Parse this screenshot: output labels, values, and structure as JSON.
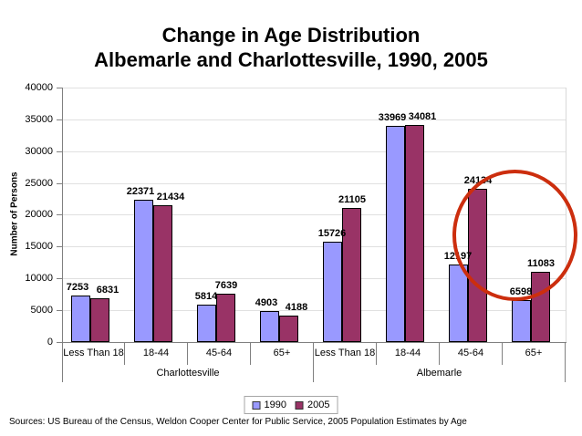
{
  "title": {
    "line1": "Change in Age Distribution",
    "line2": "Albemarle and Charlottesville, 1990, 2005"
  },
  "chart_data": {
    "type": "bar",
    "title": "Change in Age Distribution Albemarle and Charlottesville, 1990, 2005",
    "ylabel": "Number of Persons",
    "xlabel": "",
    "ylim": [
      0,
      40000
    ],
    "ytick_interval": 5000,
    "yticks": [
      0,
      5000,
      10000,
      15000,
      20000,
      25000,
      30000,
      35000,
      40000
    ],
    "grid": true,
    "legend_position": "bottom",
    "groups": [
      {
        "label": "Charlottesville",
        "categories": [
          "Less Than 18",
          "18-44",
          "45-64",
          "65+"
        ]
      },
      {
        "label": "Albemarle",
        "categories": [
          "Less Than 18",
          "18-44",
          "45-64",
          "65+"
        ]
      }
    ],
    "categories": [
      "Less Than 18",
      "18-44",
      "45-64",
      "65+",
      "Less Than 18",
      "18-44",
      "45-64",
      "65+"
    ],
    "series": [
      {
        "name": "1990",
        "color": "#9999FF",
        "values": [
          7253,
          22371,
          5814,
          4903,
          15726,
          33969,
          12197,
          6598
        ]
      },
      {
        "name": "2005",
        "color": "#993366",
        "values": [
          6831,
          21434,
          7639,
          4188,
          21105,
          34081,
          24134,
          11083
        ]
      }
    ],
    "annotation": {
      "type": "ellipse",
      "color": "#CC2E0E",
      "highlights": "Albemarle 45-64 and 65+ bars"
    }
  },
  "source_note": "Sources: US Bureau of the Census, Weldon Cooper Center for Public Service, 2005 Population Estimates by Age"
}
